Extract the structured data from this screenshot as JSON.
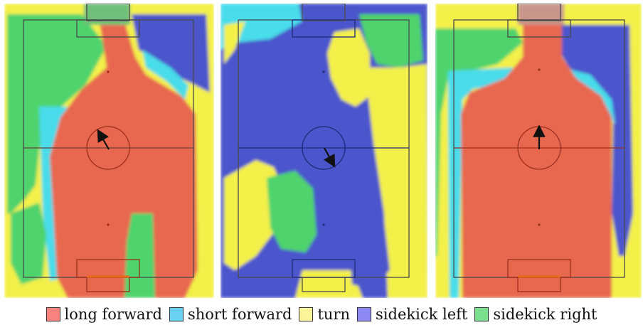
{
  "legend": [
    {
      "label": "long forward",
      "color": "#f8837e"
    },
    {
      "label": "short forward",
      "color": "#68d1f2"
    },
    {
      "label": "turn",
      "color": "#fbf59a"
    },
    {
      "label": "sidekick left",
      "color": "#8c89f5"
    },
    {
      "label": "sidekick right",
      "color": "#7be08d"
    }
  ],
  "colors": {
    "long_forward": "#e8674f",
    "short_forward": "#48dcea",
    "turn": "#f3f048",
    "sidekick_left": "#4b54cc",
    "sidekick_right": "#4fd36d",
    "pitch_lines_red": "#9a2d1d",
    "pitch_lines_blue": "#1f2a78",
    "pitch_lines_gray": "#4a4a4a",
    "arrow": "#111111"
  },
  "panels": [
    {
      "id": "panel-1",
      "arrow_heading": "up-left"
    },
    {
      "id": "panel-2",
      "arrow_heading": "down-right"
    },
    {
      "id": "panel-3",
      "arrow_heading": "up"
    }
  ]
}
